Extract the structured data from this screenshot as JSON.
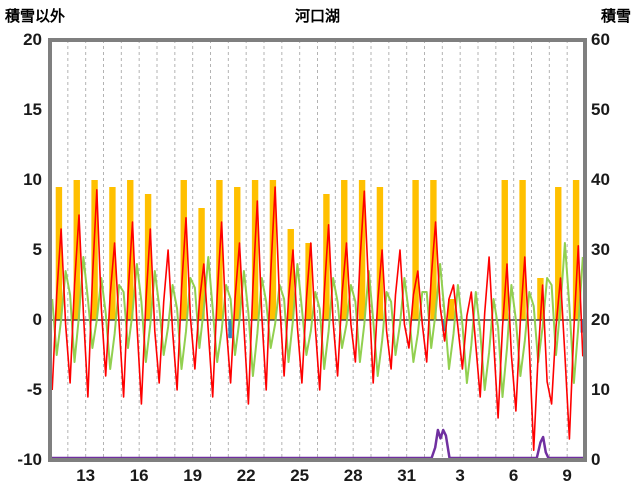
{
  "header": {
    "left_axis_title": "積雪以外",
    "title": "河口湖",
    "right_axis_title": "積雪"
  },
  "chart_data": {
    "type": "mixed",
    "title": "河口湖",
    "x_axis": {
      "days_total": 30,
      "gridline_every_days": 1,
      "tick_labels": [
        "13",
        "16",
        "19",
        "22",
        "25",
        "28",
        "31",
        "3",
        "6",
        "9"
      ],
      "tick_day_offsets": [
        2,
        5,
        8,
        11,
        14,
        17,
        20,
        23,
        26,
        29
      ]
    },
    "y_left": {
      "label": "積雪以外",
      "min": -10,
      "max": 20,
      "ticks": [
        20,
        15,
        10,
        5,
        0,
        -5,
        -10
      ]
    },
    "y_right": {
      "label": "積雪",
      "min": 0,
      "max": 60,
      "ticks": [
        60,
        50,
        40,
        30,
        20,
        10,
        0
      ]
    },
    "colors": {
      "red_line": "#ff0000",
      "green_line": "#92d050",
      "orange_bars": "#ffc000",
      "purple_line": "#7030a0",
      "blue_bars": "#2e86c1",
      "frame": "#7f7f7f",
      "gridline": "#b3b3b3",
      "zero_line": "#404040"
    },
    "series": [
      {
        "name": "red-line",
        "type": "line",
        "axis": "left",
        "samples_per_day": 4,
        "values": [
          -5.0,
          1.8,
          6.5,
          -0.3,
          -4.5,
          2.5,
          7.5,
          0.5,
          -5.5,
          2.9,
          9.3,
          0.9,
          -4.0,
          1.8,
          5.5,
          -0.3,
          -5.5,
          1.8,
          7.0,
          -0.3,
          -6.0,
          1.3,
          6.5,
          -0.8,
          -4.5,
          1.3,
          5.0,
          -0.8,
          -5.0,
          2.2,
          7.3,
          0.2,
          -3.5,
          1.3,
          4.0,
          -0.8,
          -5.5,
          1.8,
          7.0,
          -0.3,
          -4.5,
          1.5,
          5.5,
          -0.5,
          -6.0,
          2.3,
          8.5,
          0.3,
          -5.0,
          3.3,
          9.5,
          1.3,
          -4.0,
          1.5,
          5.0,
          -0.5,
          -4.5,
          1.5,
          5.5,
          -0.5,
          -5.0,
          1.9,
          6.8,
          -0.1,
          -4.0,
          1.8,
          5.5,
          -0.3,
          -3.0,
          4.1,
          9.2,
          2.1,
          -4.5,
          1.3,
          5.0,
          -0.8,
          -3.5,
          1.8,
          5.0,
          -0.3,
          -2.0,
          1.8,
          3.5,
          -0.3,
          -3.0,
          3.0,
          7.0,
          1.0,
          -1.5,
          1.5,
          2.5,
          -0.5,
          -3.5,
          0.3,
          2.0,
          -1.8,
          -5.5,
          0.5,
          4.5,
          -1.5,
          -7.0,
          -0.5,
          4.0,
          -2.5,
          -6.5,
          0.0,
          4.5,
          -2.0,
          -9.3,
          -2.4,
          2.5,
          -4.4,
          -6.0,
          -0.5,
          3.0,
          -2.5,
          -8.5,
          -0.6,
          5.3,
          -2.6
        ]
      },
      {
        "name": "green-line",
        "type": "line",
        "axis": "left",
        "samples_per_day": 4,
        "values": [
          1.5,
          -2.5,
          0.0,
          3.5,
          1.8,
          -3.0,
          0.3,
          4.5,
          1.5,
          -2.0,
          0.0,
          3.0,
          0.5,
          -3.5,
          -1.0,
          2.5,
          2.0,
          -2.0,
          0.5,
          4.0,
          1.3,
          -3.0,
          -0.3,
          3.5,
          1.0,
          -2.5,
          -0.5,
          2.5,
          0.8,
          -3.5,
          -0.8,
          3.0,
          2.3,
          -2.0,
          0.8,
          4.5,
          0.8,
          -3.0,
          -0.8,
          2.5,
          1.5,
          -2.5,
          0.0,
          3.5,
          0.5,
          -4.0,
          -1.0,
          3.0,
          1.3,
          -2.0,
          -0.3,
          2.5,
          1.5,
          -3.0,
          0.0,
          4.0,
          0.8,
          -2.5,
          -0.8,
          2.0,
          0.8,
          -3.5,
          -0.8,
          3.0,
          1.3,
          -2.0,
          -0.3,
          2.5,
          1.3,
          -3.0,
          -0.3,
          3.5,
          0.0,
          -4.0,
          -1.5,
          2.0,
          1.3,
          -2.5,
          -0.3,
          3.0,
          0.5,
          -3.0,
          -1.0,
          2.0,
          2.0,
          -2.0,
          0.5,
          4.0,
          0.5,
          -3.5,
          -1.0,
          2.5,
          -0.3,
          -4.5,
          -1.8,
          2.0,
          -0.8,
          -5.0,
          -2.3,
          1.5,
          -0.5,
          -5.5,
          -2.0,
          2.5,
          0.0,
          -4.0,
          -1.5,
          2.0,
          1.0,
          -3.0,
          -0.5,
          3.0,
          2.5,
          -2.5,
          1.0,
          5.5,
          1.0,
          -4.5,
          -0.5,
          4.5
        ]
      },
      {
        "name": "orange-bars",
        "type": "bar",
        "axis": "left",
        "per": "day",
        "values": [
          9.5,
          10,
          10,
          9.5,
          10,
          9,
          0,
          10,
          8,
          10,
          9.5,
          10,
          10,
          6.5,
          5.5,
          9,
          10,
          10,
          9.5,
          0,
          10,
          10,
          1.5,
          0,
          0,
          10,
          10,
          3,
          9.5,
          10
        ]
      },
      {
        "name": "purple-line-snow",
        "type": "line",
        "axis": "right",
        "points_day_cm": [
          [
            0,
            0
          ],
          [
            21.4,
            0
          ],
          [
            21.6,
            1.5
          ],
          [
            21.75,
            4
          ],
          [
            21.9,
            2.8
          ],
          [
            22.05,
            4
          ],
          [
            22.2,
            3.2
          ],
          [
            22.4,
            0
          ],
          [
            27.3,
            0
          ],
          [
            27.5,
            2.2
          ],
          [
            27.65,
            3
          ],
          [
            27.8,
            0.8
          ],
          [
            27.95,
            0
          ],
          [
            30,
            0
          ]
        ]
      },
      {
        "name": "blue-bars",
        "type": "bar",
        "axis": "left",
        "points_day_value": [
          [
            10.1,
            -1.3
          ],
          [
            22.1,
            -0.8
          ],
          [
            29.85,
            -0.9
          ]
        ]
      }
    ]
  }
}
